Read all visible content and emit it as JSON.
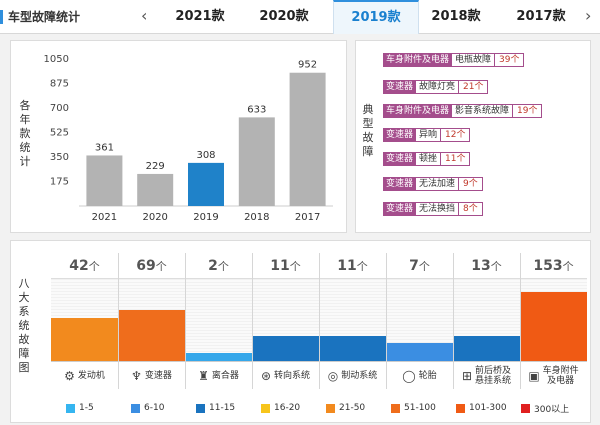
{
  "header": {
    "title": "车型故障统计",
    "prev_arrow": "‹",
    "next_arrow": "›",
    "tabs": [
      {
        "label": "2021款"
      },
      {
        "label": "2020款"
      },
      {
        "label": "2019款",
        "active": true
      },
      {
        "label": "2018款"
      },
      {
        "label": "2017款"
      }
    ]
  },
  "yearly": {
    "side_label": [
      "各",
      "年",
      "款",
      "统",
      "计"
    ],
    "chart_data": {
      "type": "bar",
      "categories": [
        "2021",
        "2020",
        "2019",
        "2018",
        "2017"
      ],
      "values": [
        361,
        229,
        308,
        633,
        952
      ],
      "yticks": [
        175,
        350,
        525,
        700,
        875,
        1050
      ],
      "ylim": [
        0,
        1050
      ],
      "highlight_index": 2,
      "colors": {
        "default": "#b3b3b3",
        "highlight": "#1f82c9"
      }
    }
  },
  "faults": {
    "side_label": [
      "典",
      "型",
      "故",
      "障"
    ],
    "items": [
      {
        "category": "车身附件及电器",
        "desc": "电瓶故障",
        "count": "39个"
      },
      {
        "category": "变速器",
        "desc": "故障灯亮",
        "count": "21个"
      },
      {
        "category": "车身附件及电器",
        "desc": "影音系统故障",
        "count": "19个"
      },
      {
        "category": "变速器",
        "desc": "异响",
        "count": "12个"
      },
      {
        "category": "变速器",
        "desc": "顿挫",
        "count": "11个"
      },
      {
        "category": "变速器",
        "desc": "无法加速",
        "count": "9个"
      },
      {
        "category": "变速器",
        "desc": "无法换挡",
        "count": "8个"
      }
    ]
  },
  "systems": {
    "side_label": [
      "八",
      "大",
      "系",
      "统",
      "故",
      "障",
      "图"
    ],
    "unit": "个",
    "items": [
      {
        "name": "发动机",
        "count": "42",
        "level": 0.52,
        "color": "#f28a1e",
        "icon": "engine-icon",
        "glyph": "⚙"
      },
      {
        "name": "变速器",
        "count": "69",
        "level": 0.62,
        "color": "#ef6d1c",
        "icon": "gear-shift-icon",
        "glyph": "♆"
      },
      {
        "name": "离合器",
        "count": "2",
        "level": 0.1,
        "color": "#35a7ea",
        "icon": "clutch-icon",
        "glyph": "♜"
      },
      {
        "name": "转向系统",
        "count": "11",
        "level": 0.3,
        "color": "#1a73bf",
        "icon": "steering-wheel-icon",
        "glyph": "⊛"
      },
      {
        "name": "制动系统",
        "count": "11",
        "level": 0.3,
        "color": "#1a73bf",
        "icon": "brake-icon",
        "glyph": "◎"
      },
      {
        "name": "轮胎",
        "count": "7",
        "level": 0.22,
        "color": "#3b8ee2",
        "icon": "tire-icon",
        "glyph": "◯"
      },
      {
        "name": "前后桥及悬挂系统",
        "count": "13",
        "level": 0.3,
        "color": "#1a73bf",
        "icon": "suspension-icon",
        "glyph": "⊞"
      },
      {
        "name": "车身附件及电器",
        "count": "153",
        "level": 0.84,
        "color": "#f05a14",
        "icon": "battery-icon",
        "glyph": "▣"
      }
    ],
    "legend": [
      {
        "label": "1-5",
        "color": "#35b5f0"
      },
      {
        "label": "6-10",
        "color": "#3b8ee2"
      },
      {
        "label": "11-15",
        "color": "#1a73bf"
      },
      {
        "label": "16-20",
        "color": "#f7c51c"
      },
      {
        "label": "21-50",
        "color": "#f28a1e"
      },
      {
        "label": "51-100",
        "color": "#ef6d1c"
      },
      {
        "label": "101-300",
        "color": "#f05a14"
      },
      {
        "label": "300以上",
        "color": "#e02020"
      }
    ]
  }
}
